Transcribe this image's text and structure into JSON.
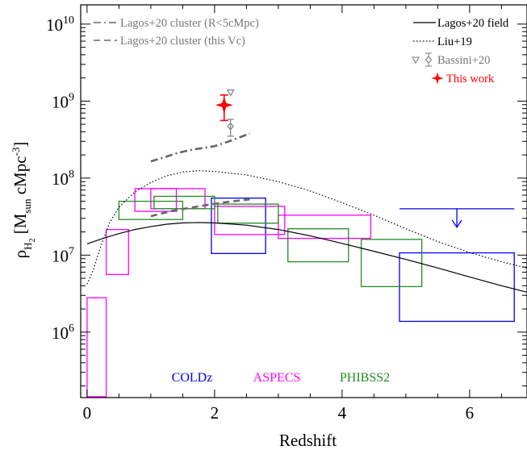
{
  "chart_data": {
    "type": "line",
    "xlabel": "Redshift",
    "ylabel_parts": {
      "rho": "ρ",
      "sub": "H",
      "sub2": "2",
      "bracket_open": " [M",
      "msun_sub": "sun",
      "unit_mid": " cMpc",
      "sup": "-3",
      "bracket_close": "]"
    },
    "xlim": [
      -0.1,
      6.9
    ],
    "ylim_log10": [
      5.15,
      10.25
    ],
    "log_y": true,
    "x_ticks": [
      "0",
      "2",
      "4",
      "6"
    ],
    "x_tick_values": [
      0,
      2,
      4,
      6
    ],
    "y_ticks": [
      {
        "value": 6,
        "base": "10",
        "exp": "6"
      },
      {
        "value": 7,
        "base": "10",
        "exp": "7"
      },
      {
        "value": 8,
        "base": "10",
        "exp": "8"
      },
      {
        "value": 9,
        "base": "10",
        "exp": "9"
      },
      {
        "value": 10,
        "base": "10",
        "exp": "10"
      }
    ],
    "series": [
      {
        "name": "Lagos+20 cluster (R<5cMpc)",
        "style": "dashdot",
        "color": "#666666",
        "x": [
          1.0,
          1.2,
          1.4,
          1.6,
          1.8,
          2.0,
          2.2,
          2.4,
          2.55
        ],
        "y": [
          165000000.0,
          185000000.0,
          210000000.0,
          230000000.0,
          245000000.0,
          260000000.0,
          295000000.0,
          340000000.0,
          380000000.0
        ]
      },
      {
        "name": "Lagos+20 cluster (this Vc)",
        "style": "dashed",
        "color": "#666666",
        "x": [
          1.0,
          1.3,
          1.6,
          1.9,
          2.2,
          2.55
        ],
        "y": [
          32000000.0,
          37000000.0,
          41000000.0,
          45000000.0,
          49000000.0,
          53000000.0
        ]
      },
      {
        "name": "Lagos+20 field",
        "style": "solid",
        "color": "#000000",
        "x": [
          0.0,
          0.25,
          0.5,
          0.75,
          1.0,
          1.25,
          1.5,
          1.75,
          2.0,
          2.5,
          3.0,
          3.5,
          4.0,
          4.5,
          5.0,
          5.5,
          6.0,
          6.5,
          6.9
        ],
        "y": [
          14000000.0,
          16500000.0,
          19000000.0,
          21500000.0,
          23500000.0,
          25200000.0,
          26200000.0,
          26500000.0,
          26200000.0,
          24500000.0,
          21500000.0,
          17800000.0,
          14200000.0,
          11200000.0,
          8800000.0,
          6800000.0,
          5200000.0,
          4000000.0,
          3300000.0
        ]
      },
      {
        "name": "Liu+19",
        "style": "dotted",
        "color": "#000000",
        "x": [
          0.0,
          0.1,
          0.2,
          0.35,
          0.5,
          0.75,
          1.0,
          1.25,
          1.5,
          1.75,
          2.0,
          2.5,
          3.0,
          3.5,
          4.0,
          4.5,
          5.0,
          5.5,
          6.0,
          6.5,
          6.9
        ],
        "y": [
          4200000.0,
          6500000.0,
          12000000.0,
          26000000.0,
          42000000.0,
          66000000.0,
          88000000.0,
          107000000.0,
          120000000.0,
          125000000.0,
          122000000.0,
          110000000.0,
          90000000.0,
          68000000.0,
          48000000.0,
          33000000.0,
          22000000.0,
          15000000.0,
          10800000.0,
          8200000.0,
          6800000.0
        ]
      }
    ],
    "boxes": {
      "COLDz": {
        "color": "#0000ee",
        "items": [
          {
            "x": [
              1.95,
              2.8
            ],
            "y": [
              10500000.0,
              55000000.0
            ]
          },
          {
            "x": [
              4.9,
              6.7
            ],
            "y": [
              1380000.0,
              10700000.0
            ]
          }
        ]
      },
      "ASPECS": {
        "color": "#ff00ff",
        "items": [
          {
            "x": [
              0.0,
              0.3
            ],
            "y": [
              145000.0,
              2800000.0
            ]
          },
          {
            "x": [
              0.3,
              0.65
            ],
            "y": [
              5600000.0,
              21500000.0
            ]
          },
          {
            "x": [
              0.75,
              1.4
            ],
            "y": [
              37000000.0,
              73000000.0
            ]
          },
          {
            "x": [
              1.0,
              1.85
            ],
            "y": [
              40000000.0,
              73000000.0
            ]
          },
          {
            "x": [
              2.0,
              3.1
            ],
            "y": [
              18500000.0,
              43000000.0
            ]
          },
          {
            "x": [
              3.0,
              4.45
            ],
            "y": [
              16500000.0,
              33000000.0
            ]
          }
        ]
      },
      "PHIBSS2": {
        "color": "#228b22",
        "items": [
          {
            "x": [
              0.5,
              1.5
            ],
            "y": [
              29000000.0,
              50000000.0
            ]
          },
          {
            "x": [
              1.05,
              2.0
            ],
            "y": [
              40000000.0,
              58000000.0
            ]
          },
          {
            "x": [
              2.05,
              3.0
            ],
            "y": [
              26000000.0,
              46000000.0
            ]
          },
          {
            "x": [
              3.15,
              4.1
            ],
            "y": [
              8200000.0,
              22000000.0
            ]
          },
          {
            "x": [
              4.3,
              5.25
            ],
            "y": [
              3900000.0,
              16000000.0
            ]
          }
        ]
      }
    },
    "upper_limit": {
      "color": "#0000ee",
      "x": [
        4.9,
        6.7
      ],
      "y": 40000000.0,
      "arrow_x": 5.8,
      "arrow_to": 23000000.0
    },
    "bassini": {
      "color": "#808080",
      "x": 2.25,
      "tri_y": 1300000000.0,
      "diamond_y": 470000000.0,
      "err": [
        350000000.0,
        580000000.0
      ]
    },
    "this_work": {
      "color": "#ff0000",
      "x": 2.15,
      "y": 890000000.0,
      "err": [
        560000000.0,
        1200000000.0
      ]
    },
    "legend_left": [
      {
        "label": "Lagos+20 cluster (R<5cMpc)",
        "style": "dashdot"
      },
      {
        "label": "Lagos+20 cluster (this Vc)",
        "style": "dashed"
      }
    ],
    "legend_right": [
      {
        "label": "Lagos+20 field",
        "style": "solid"
      },
      {
        "label": "Liu+19",
        "style": "dotted"
      },
      {
        "label": "Bassini+20",
        "style": "bassini"
      },
      {
        "label": "This work",
        "style": "star"
      }
    ],
    "survey_labels": [
      {
        "label": "COLDz",
        "color": "#0000ee"
      },
      {
        "label": "ASPECS",
        "color": "#ff00ff"
      },
      {
        "label": "PHIBSS2",
        "color": "#228b22"
      }
    ]
  }
}
